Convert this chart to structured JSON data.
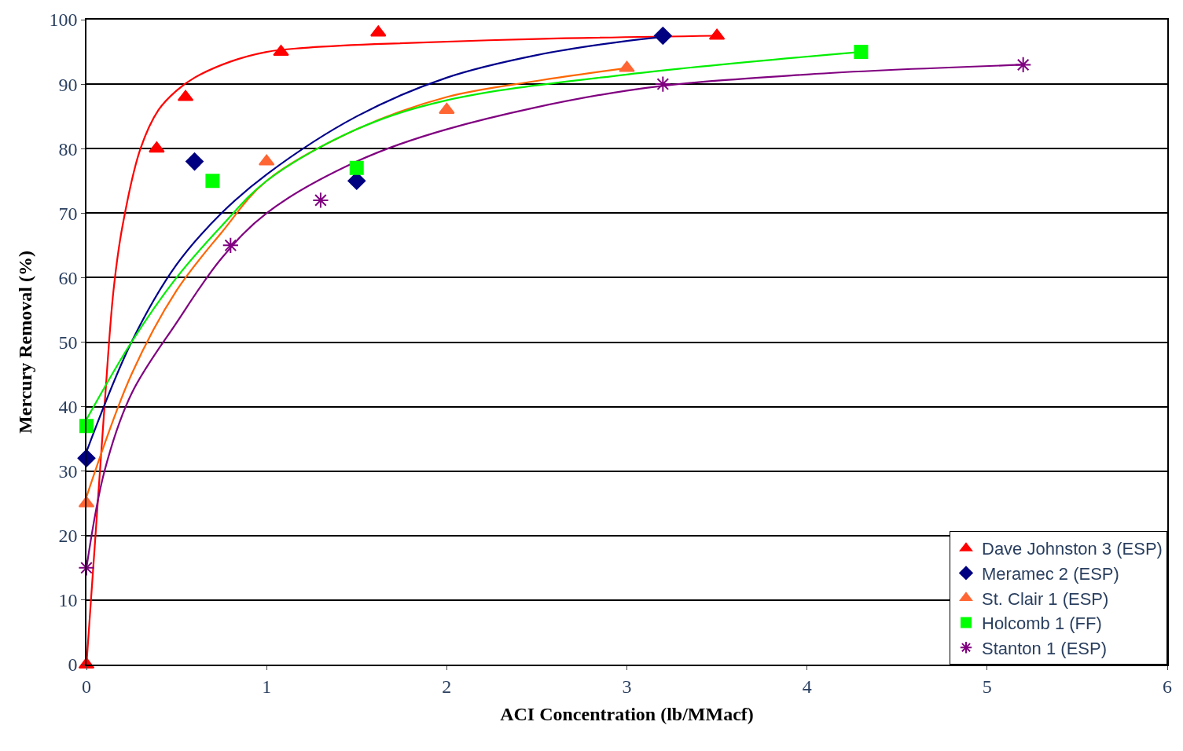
{
  "chart_data": {
    "type": "scatter",
    "xlabel": "ACI Concentration (lb/MMacf)",
    "ylabel": "Mercury Removal (%)",
    "xlim": [
      0,
      6
    ],
    "xticks": [
      0,
      1,
      2,
      3,
      4,
      5,
      6
    ],
    "ylim": [
      0,
      100
    ],
    "yticks": [
      0,
      10,
      20,
      30,
      40,
      50,
      60,
      70,
      80,
      90,
      100
    ],
    "grid": "y",
    "legend": "bottom right",
    "series": [
      {
        "name": "Dave Johnston 3 (ESP)",
        "marker": "triangle",
        "color": "#ff0000",
        "x": [
          0,
          0.39,
          0.55,
          1.08,
          1.62,
          3.5
        ],
        "values": [
          0,
          80,
          88,
          95,
          98,
          97.5
        ]
      },
      {
        "name": "Meramec 2 (ESP)",
        "marker": "diamond",
        "color": "#000080",
        "x": [
          0,
          0.6,
          1.5,
          3.2
        ],
        "values": [
          32,
          78,
          75,
          97.5
        ]
      },
      {
        "name": "St. Clair 1 (ESP)",
        "marker": "triangle",
        "color": "#ff6633",
        "x": [
          0,
          1,
          2,
          3
        ],
        "values": [
          25,
          78,
          86,
          92.5
        ]
      },
      {
        "name": "Holcomb 1 (FF)",
        "marker": "square",
        "color": "#00ff00",
        "x": [
          0,
          0.7,
          1.5,
          4.3
        ],
        "values": [
          37,
          75,
          77,
          95
        ]
      },
      {
        "name": "Stanton 1 (ESP)",
        "marker": "cross",
        "color": "#800080",
        "x": [
          0,
          0.8,
          1.3,
          3.2,
          5.2
        ],
        "values": [
          15,
          65,
          72,
          90,
          93
        ]
      },
      {
        "type": "line",
        "marker": "none",
        "color": "#ff0000",
        "x": [
          0,
          0.05,
          0.1,
          0.15,
          0.2,
          0.3,
          0.4,
          0.5,
          0.6,
          0.8,
          1.0,
          1.2,
          1.6,
          2.5,
          3.5
        ],
        "values": [
          0,
          20,
          40,
          58,
          68,
          80,
          86,
          89,
          91,
          93.5,
          95,
          95.6,
          96.2,
          97,
          97.5
        ]
      },
      {
        "type": "line",
        "marker": "none",
        "color": "#00008b",
        "x": [
          0,
          0.25,
          0.5,
          0.75,
          1,
          1.5,
          2,
          2.5,
          3,
          3.2
        ],
        "values": [
          33,
          50,
          62,
          70,
          76,
          85,
          91,
          94.5,
          96.7,
          97.3
        ]
      },
      {
        "type": "line",
        "marker": "none",
        "color": "#ff6600",
        "x": [
          0,
          0.25,
          0.5,
          0.75,
          1,
          1.5,
          2,
          2.5,
          3
        ],
        "values": [
          26,
          45,
          58,
          67,
          75,
          83,
          88,
          90.5,
          92.5
        ]
      },
      {
        "type": "line",
        "marker": "none",
        "color": "#00ee00",
        "x": [
          0,
          0.25,
          0.5,
          0.75,
          1,
          1.5,
          2,
          3,
          4.3
        ],
        "values": [
          38,
          50,
          60,
          68,
          75,
          83,
          87.5,
          91.5,
          95
        ]
      },
      {
        "type": "line",
        "marker": "none",
        "color": "#800080",
        "x": [
          0,
          0.1,
          0.25,
          0.5,
          0.75,
          1,
          1.5,
          2,
          3,
          4,
          5.2
        ],
        "values": [
          15,
          30,
          42,
          53,
          63,
          70,
          78,
          83,
          89,
          91.5,
          93
        ]
      }
    ]
  }
}
